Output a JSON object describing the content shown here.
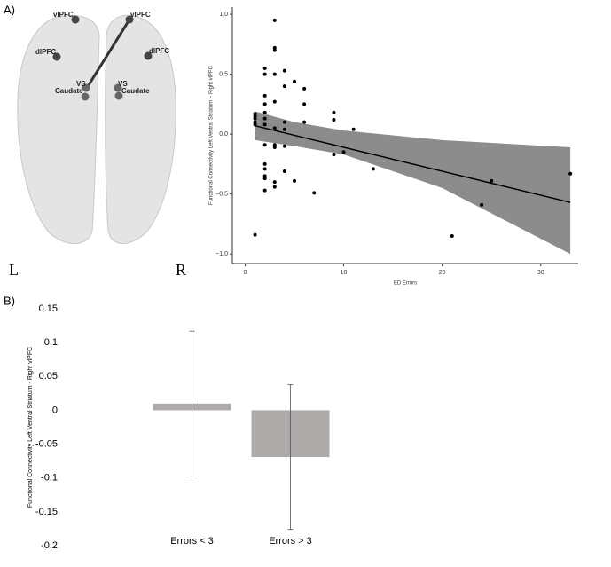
{
  "panels": {
    "a": "A)",
    "b": "B)"
  },
  "brain": {
    "labels": [
      "vlPFC",
      "vlPFC",
      "dlPFC",
      "dlPFC",
      "VS",
      "Caudate",
      "VS",
      "Caudate"
    ],
    "left": "L",
    "right": "R"
  },
  "chart_data": [
    {
      "type": "scatter",
      "x_label": "ED Errors",
      "y_label": "Functional Connectivity Left Ventral Striatum − Right vlPFC",
      "color": "#000000",
      "band_color": "#8c8c8c",
      "x": [
        1,
        1,
        1,
        1,
        1,
        1,
        2,
        2,
        2,
        2,
        2,
        2,
        2,
        2,
        2,
        2,
        2,
        2,
        2,
        3,
        3,
        3,
        3,
        3,
        3,
        3,
        3,
        3,
        3,
        4,
        4,
        4,
        4,
        4,
        4,
        5,
        5,
        6,
        6,
        6,
        7,
        9,
        9,
        9,
        10,
        11,
        13,
        21,
        24,
        25,
        33
      ],
      "y": [
        -0.84,
        0.17,
        0.15,
        0.13,
        0.1,
        0.08,
        0.55,
        0.5,
        0.32,
        0.25,
        0.18,
        0.13,
        0.08,
        -0.09,
        -0.25,
        -0.29,
        -0.35,
        -0.37,
        -0.47,
        0.95,
        0.72,
        0.7,
        0.5,
        0.27,
        0.05,
        -0.09,
        -0.11,
        -0.4,
        -0.44,
        0.53,
        0.4,
        0.1,
        0.04,
        -0.1,
        -0.31,
        0.44,
        -0.39,
        0.38,
        0.25,
        0.1,
        -0.49,
        0.18,
        0.12,
        -0.17,
        -0.15,
        0.04,
        -0.29,
        -0.85,
        -0.59,
        -0.39,
        -0.33
      ],
      "fit": {
        "x": [
          1,
          33
        ],
        "y": [
          0.07,
          -0.57
        ]
      },
      "band": {
        "x": [
          1,
          5,
          10,
          20,
          33
        ],
        "upper": [
          0.19,
          0.1,
          0.03,
          -0.05,
          -0.11
        ],
        "lower": [
          -0.05,
          -0.1,
          -0.17,
          -0.45,
          -1.0
        ]
      },
      "xlim": [
        -1.3,
        33.8
      ],
      "xticks": [
        0,
        10,
        20,
        30
      ],
      "ylim": [
        -1.08,
        1.06
      ],
      "yticks": [
        {
          "value": -1,
          "label": "−1.0"
        },
        {
          "value": -0.5,
          "label": "−0.5"
        },
        {
          "value": 0,
          "label": "0.0"
        },
        0.5,
        {
          "value": 1,
          "label": "1.0"
        }
      ]
    },
    {
      "type": "bar",
      "y_label": "Functional Connectivity Left Ventral Striatum - Right vlPFC",
      "categories": [
        "Errors < 3",
        "Errors > 3"
      ],
      "values": [
        0.01,
        -0.069
      ],
      "errors": [
        0.107,
        0.107
      ],
      "color": "#aeaaaa",
      "ylim": [
        -0.2,
        0.15
      ],
      "yticks": [
        0.15,
        0.1,
        0.05,
        0,
        -0.05,
        -0.1,
        -0.15,
        -0.2
      ]
    }
  ]
}
